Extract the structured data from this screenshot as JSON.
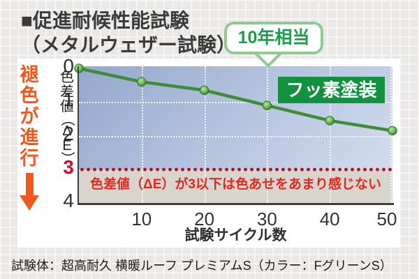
{
  "page": {
    "title_line1": "■促進耐候性能試験",
    "title_line2": "（メタルウェザー試験）",
    "caption": "試験体：超高耐久 横暖ルーフ プレミアムS（カラー：FグリーンS）"
  },
  "chart_data": {
    "type": "line",
    "title": "促進耐候性能試験（メタルウェザー試験）",
    "x": [
      0,
      10,
      20,
      30,
      40,
      50
    ],
    "series": [
      {
        "name": "フッ素塗装",
        "values": [
          0,
          0.4,
          0.65,
          1.1,
          1.55,
          1.85
        ]
      }
    ],
    "xlabel": "試験サイクル数",
    "ylabel": "色差値（ΔE）",
    "xlim": [
      0,
      50
    ],
    "ylim": [
      0,
      4
    ],
    "y_axis_inverted": true,
    "x_ticks": [
      10,
      20,
      30,
      40,
      50
    ],
    "y_ticks": [
      0,
      1,
      2,
      3,
      4
    ],
    "red_y_tick": 3,
    "grid": "white dotted gridlines on blue gradient background",
    "threshold": {
      "value": 3,
      "style": "red dotted horizontal line",
      "note": "色差値（ΔE）が3以下は色あせをあまり感じない"
    },
    "annotations": [
      {
        "type": "balloon-callout",
        "x": 30,
        "label": "10年相当"
      },
      {
        "type": "axis-direction-note",
        "label": "褪色が進行",
        "direction": "down"
      }
    ]
  },
  "colors": {
    "series_line_green": "#3e8c35",
    "series_label_bg_green": "#12913f",
    "callout_green_text": "#1d9e4b",
    "callout_green_border": "#8ecb92",
    "threshold_dot_red": "#b5121f",
    "threshold_note_red": "#e6261d",
    "fade_note_orange": "#f2571c",
    "red_tick": "#c41230"
  }
}
